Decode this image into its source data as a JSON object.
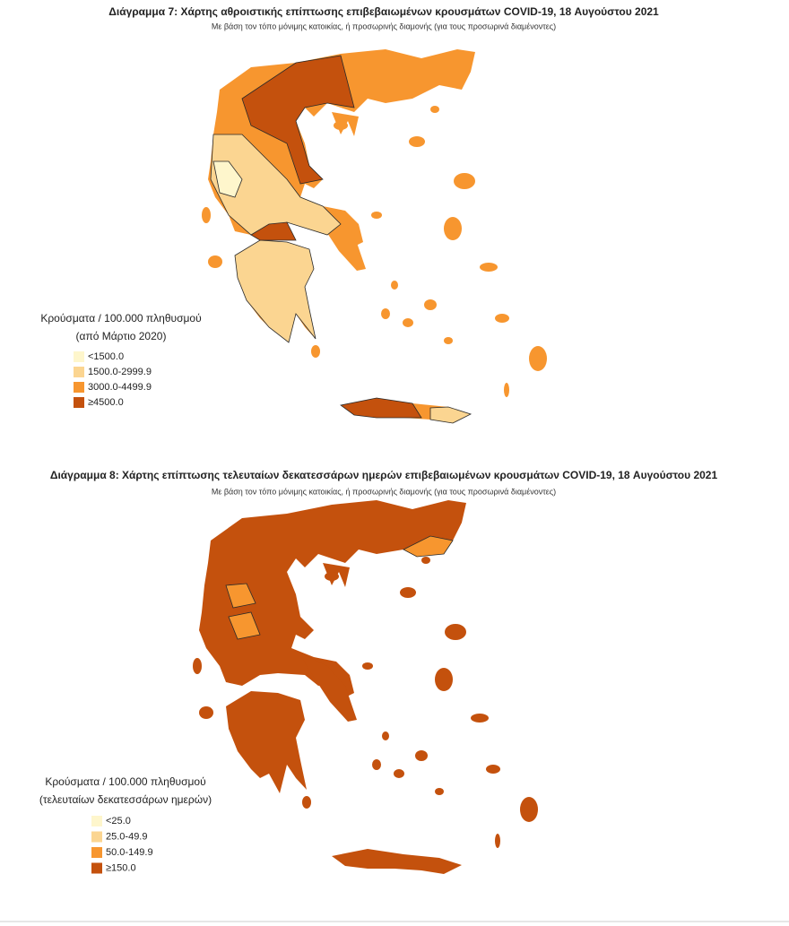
{
  "maps": [
    {
      "title": "Διάγραμμα 7: Χάρτης αθροιστικής επίπτωσης επιβεβαιωμένων κρουσμάτων COVID-19, 18 Αυγούστου 2021",
      "subtitle": "Με βάση τον τόπο μόνιμης κατοικίας, ή προσωρινής διαμονής (για τους προσωρινά διαμένοντες)",
      "legend": {
        "title": [
          "Κρούσματα / 100.000 πληθυσμού",
          "(από Μάρτιο 2020)"
        ],
        "items": [
          {
            "label": "<1500.0",
            "color": "#fef6cc"
          },
          {
            "label": "1500.0-2999.9",
            "color": "#fbd591"
          },
          {
            "label": "3000.0-4499.9",
            "color": "#f7962f"
          },
          {
            "label": "≥4500.0",
            "color": "#c4510d"
          }
        ]
      }
    },
    {
      "title": "Διάγραμμα 8: Χάρτης επίπτωσης τελευταίων δεκατεσσάρων ημερών επιβεβαιωμένων κρουσμάτων COVID-19, 18 Αυγούστου 2021",
      "subtitle": "Με βάση τον τόπο μόνιμης κατοικίας, ή προσωρινής διαμονής (για τους προσωρινά διαμένοντες)",
      "legend": {
        "title": [
          "Κρούσματα / 100.000 πληθυσμού",
          "(τελευταίων δεκατεσσάρων ημερών)"
        ],
        "items": [
          {
            "label": "<25.0",
            "color": "#fef6cc"
          },
          {
            "label": "25.0-49.9",
            "color": "#fbd591"
          },
          {
            "label": "50.0-149.9",
            "color": "#f7962f"
          },
          {
            "label": "≥150.0",
            "color": "#c4510d"
          }
        ]
      }
    }
  ]
}
